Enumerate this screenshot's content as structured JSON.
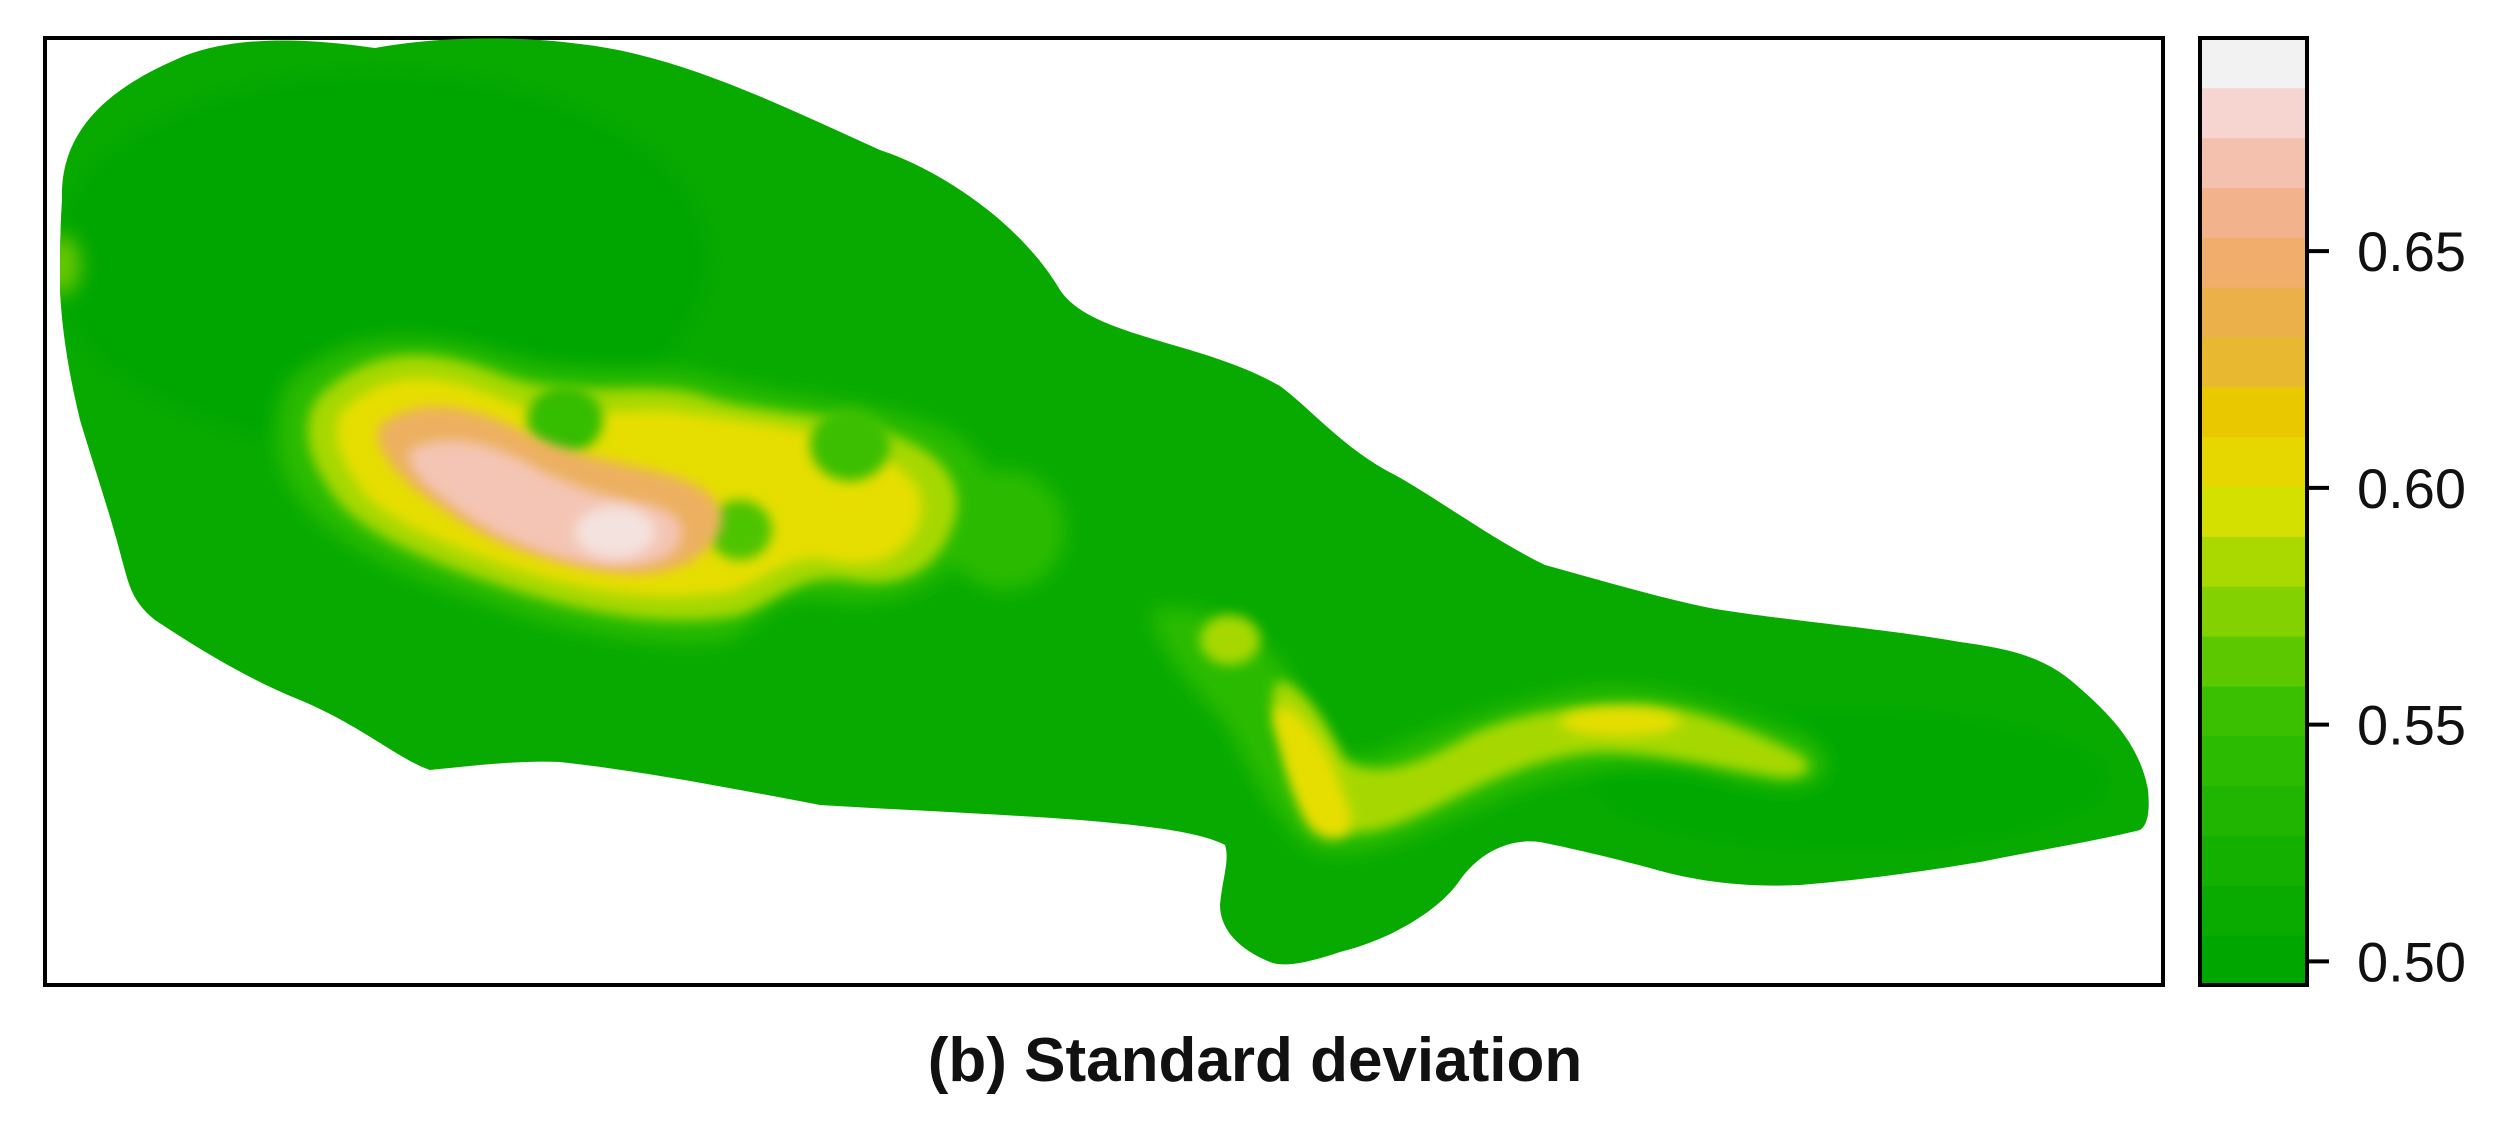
{
  "caption": "(b) Standard deviation",
  "legend": {
    "min": 0.495,
    "max": 0.695,
    "ticks": [
      {
        "value": 0.5,
        "label": "0.50"
      },
      {
        "value": 0.55,
        "label": "0.55"
      },
      {
        "value": 0.6,
        "label": "0.60"
      },
      {
        "value": 0.65,
        "label": "0.65"
      }
    ],
    "colors": [
      "#00a600",
      "#0aab00",
      "#14b000",
      "#1fb500",
      "#2bbb00",
      "#3ac000",
      "#5cc800",
      "#84d100",
      "#aad900",
      "#d4e100",
      "#e6d700",
      "#eac800",
      "#e8b830",
      "#ebb04a",
      "#f0ad6c",
      "#f2b38c",
      "#f4c1ae",
      "#f6d4cf",
      "#f2f2f2"
    ]
  }
}
